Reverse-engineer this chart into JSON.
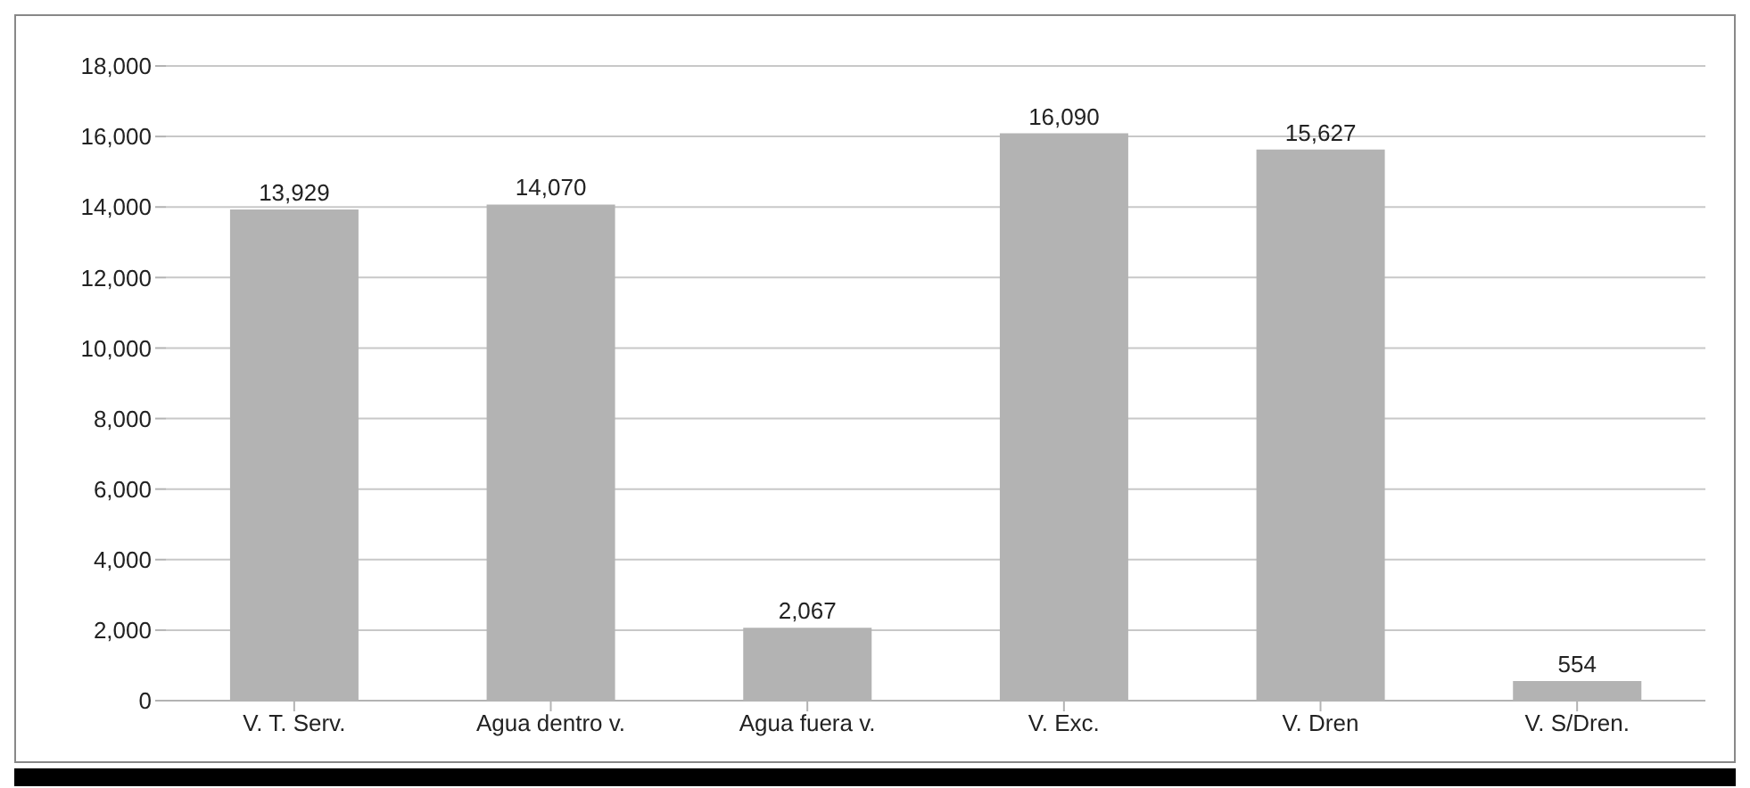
{
  "chart_data": {
    "type": "bar",
    "categories": [
      "V. T. Serv.",
      "Agua dentro v.",
      "Agua fuera v.",
      "V. Exc.",
      "V. Dren",
      "V. S/Dren."
    ],
    "values": [
      13929,
      14070,
      2067,
      16090,
      15627,
      554
    ],
    "value_labels": [
      "13,929",
      "14,070",
      "2,067",
      "16,090",
      "15,627",
      "554"
    ],
    "color": "#b3b3b3",
    "ylim": [
      0,
      18000
    ],
    "yticks": [
      0,
      {
        "value": 2000,
        "label": "2,000"
      },
      {
        "value": 4000,
        "label": "4,000"
      },
      {
        "value": 6000,
        "label": "6,000"
      },
      {
        "value": 8000,
        "label": "8,000"
      },
      {
        "value": 10000,
        "label": "10,000"
      },
      {
        "value": 12000,
        "label": "12,000"
      },
      {
        "value": 14000,
        "label": "14,000"
      },
      {
        "value": 16000,
        "label": "16,000"
      },
      {
        "value": 18000,
        "label": "18,000"
      }
    ],
    "grid": "y"
  }
}
